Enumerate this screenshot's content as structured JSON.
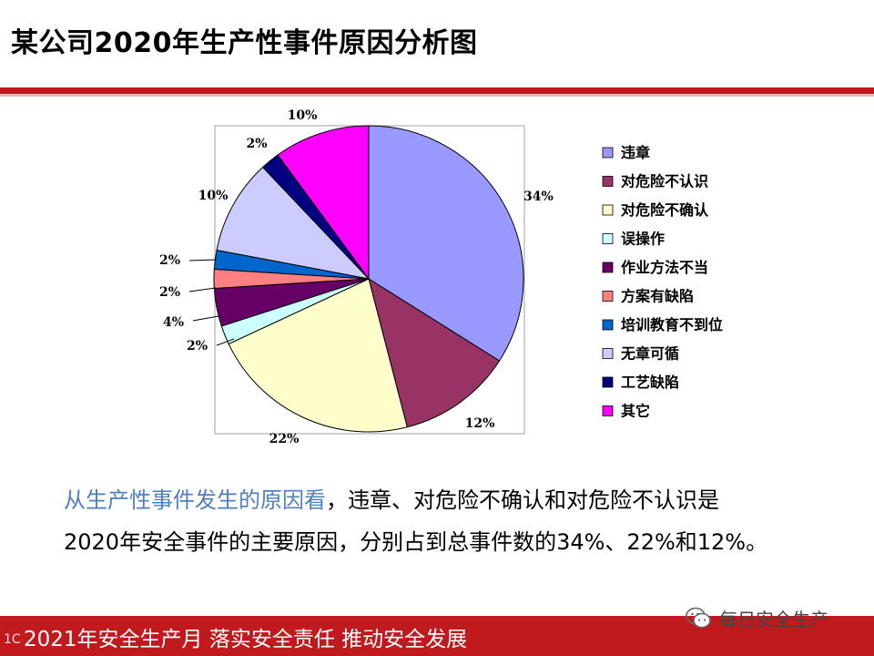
{
  "slide": {
    "title": "某公司2020年生产性事件原因分析图"
  },
  "chart_data": {
    "type": "pie",
    "title": "",
    "start_angle_deg": 0,
    "direction": "clockwise",
    "slices": [
      {
        "name": "违章",
        "value": 34,
        "label": "34%",
        "color": "#9999ff"
      },
      {
        "name": "对危险不认识",
        "value": 12,
        "label": "12%",
        "color": "#993366"
      },
      {
        "name": "对危险不确认",
        "value": 22,
        "label": "22%",
        "color": "#ffffcc"
      },
      {
        "name": "误操作",
        "value": 2,
        "label": "2%",
        "color": "#ccffff"
      },
      {
        "name": "作业方法不当",
        "value": 4,
        "label": "4%",
        "color": "#660066"
      },
      {
        "name": "方案有缺陷",
        "value": 2,
        "label": "2%",
        "color": "#ff8080"
      },
      {
        "name": "培训教育不到位",
        "value": 2,
        "label": "2%",
        "color": "#0066cc"
      },
      {
        "name": "无章可循",
        "value": 10,
        "label": "10%",
        "color": "#ccccff"
      },
      {
        "name": "工艺缺陷",
        "value": 2,
        "label": "2%",
        "color": "#000080"
      },
      {
        "name": "其它",
        "value": 10,
        "label": "10%",
        "color": "#ff00ff"
      }
    ],
    "legend_position": "right"
  },
  "caption": {
    "highlight": "从生产性事件发生的原因看",
    "rest_line1": "，违章、对危险不确认和对危险不认识是",
    "line2": "2020年安全事件的主要原因，分别占到总事件数的34%、22%和12%。"
  },
  "footer": {
    "text": "2021年安全生产月 落实安全责任 推动安全发展",
    "wechat_name": "每日安全生产",
    "corner_mark": "1C"
  },
  "colors": {
    "accent_red": "#c0191e",
    "caption_highlight": "#4f7fbf"
  }
}
